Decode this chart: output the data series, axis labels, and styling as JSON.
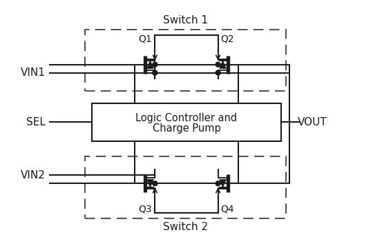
{
  "title": "Switch 1",
  "title2": "Switch 2",
  "box_label_line1": "Logic Controller and",
  "box_label_line2": "Charge Pump",
  "vin1_label": "VIN1",
  "vin2_label": "VIN2",
  "sel_label": "SEL",
  "vout_label": "VOUT",
  "q1_label": "Q1",
  "q2_label": "Q2",
  "q3_label": "Q3",
  "q4_label": "Q4",
  "bg_color": "#ffffff",
  "line_color": "#1a1a1a",
  "font_size": 11,
  "label_font_size": 12
}
